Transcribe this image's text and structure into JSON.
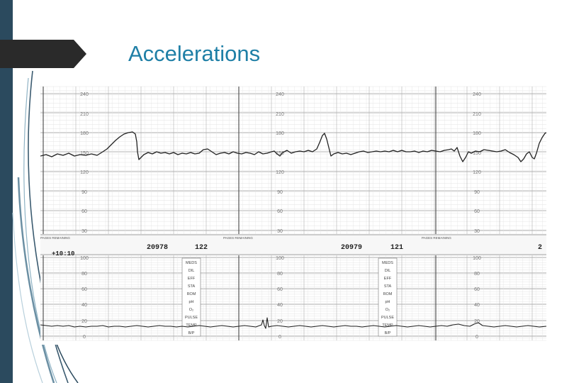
{
  "slide": {
    "title": "Accelerations",
    "colors": {
      "band": "#2b4a5e",
      "title": "#1f7fa6",
      "tab": "#2a2a2a"
    }
  },
  "strip": {
    "fhr_scale": [
      "240",
      "210",
      "180",
      "150",
      "120",
      "90",
      "60",
      "30"
    ],
    "uc_scale": [
      "100",
      "80",
      "60",
      "40",
      "20",
      "0"
    ],
    "pages_remaining_label": "PAGES REMAINING",
    "band_marker": "+10:10",
    "page_one": {
      "serial": "20978",
      "pages": "122"
    },
    "page_two": {
      "serial": "20979",
      "pages": "121"
    },
    "page_three_partial": "2",
    "info_box_labels": [
      "MEDS",
      "DIL",
      "EFF",
      "STA",
      "ROM",
      "pH",
      "O₂",
      "PULSE",
      "TEMP",
      "B/P"
    ]
  }
}
